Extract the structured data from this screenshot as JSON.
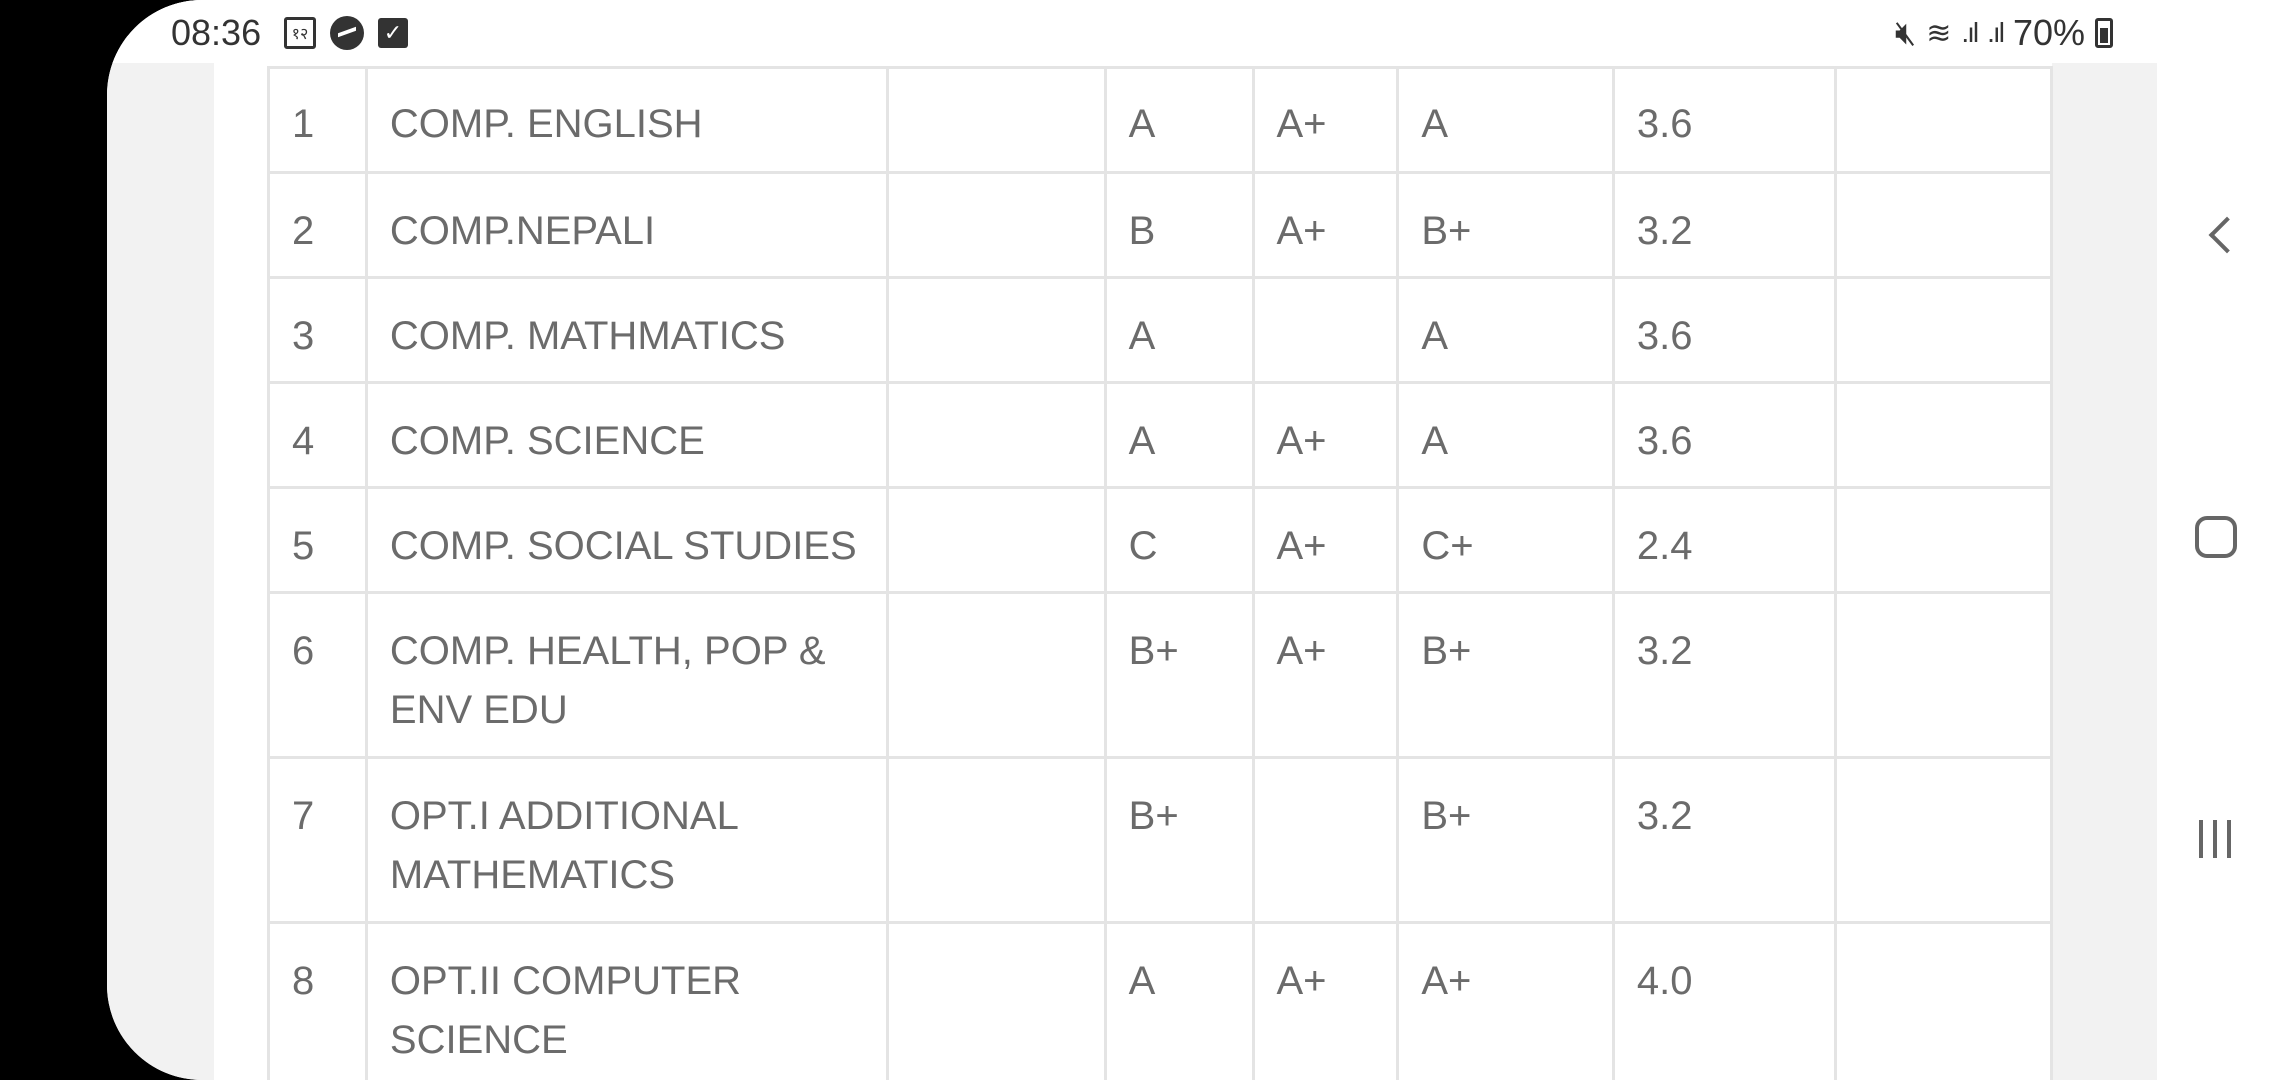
{
  "status_bar": {
    "time": "08:36",
    "left_icons": [
      "news-app-icon",
      "messenger-icon",
      "checkbox-app-icon"
    ],
    "news_icon_text": "१२",
    "battery_percent": "70%",
    "right_icons": [
      "mute-icon",
      "wifi-icon",
      "signal-icon",
      "signal-icon",
      "battery-icon"
    ]
  },
  "results_table": {
    "rows": [
      {
        "sn": "1",
        "subject": "COMP. ENGLISH",
        "blank": "",
        "th": "A",
        "pr": "A+",
        "final": "A",
        "gp": "3.6",
        "remarks": ""
      },
      {
        "sn": "2",
        "subject": "COMP.NEPALI",
        "blank": "",
        "th": "B",
        "pr": "A+",
        "final": "B+",
        "gp": "3.2",
        "remarks": ""
      },
      {
        "sn": "3",
        "subject": "COMP. MATHMATICS",
        "blank": "",
        "th": "A",
        "pr": "",
        "final": "A",
        "gp": "3.6",
        "remarks": ""
      },
      {
        "sn": "4",
        "subject": "COMP. SCIENCE",
        "blank": "",
        "th": "A",
        "pr": "A+",
        "final": "A",
        "gp": "3.6",
        "remarks": ""
      },
      {
        "sn": "5",
        "subject": "COMP. SOCIAL STUDIES",
        "blank": "",
        "th": "C",
        "pr": "A+",
        "final": "C+",
        "gp": "2.4",
        "remarks": ""
      },
      {
        "sn": "6",
        "subject": "COMP. HEALTH, POP & ENV EDU",
        "blank": "",
        "th": "B+",
        "pr": "A+",
        "final": "B+",
        "gp": "3.2",
        "remarks": ""
      },
      {
        "sn": "7",
        "subject": "OPT.I ADDITIONAL MATHEMATICS",
        "blank": "",
        "th": "B+",
        "pr": "",
        "final": "B+",
        "gp": "3.2",
        "remarks": ""
      },
      {
        "sn": "8",
        "subject": "OPT.II COMPUTER SCIENCE",
        "blank": "",
        "th": "A",
        "pr": "A+",
        "final": "A+",
        "gp": "4.0",
        "remarks": ""
      }
    ]
  },
  "nav_bar": {
    "buttons": [
      "back-button",
      "home-button",
      "recents-button"
    ]
  }
}
